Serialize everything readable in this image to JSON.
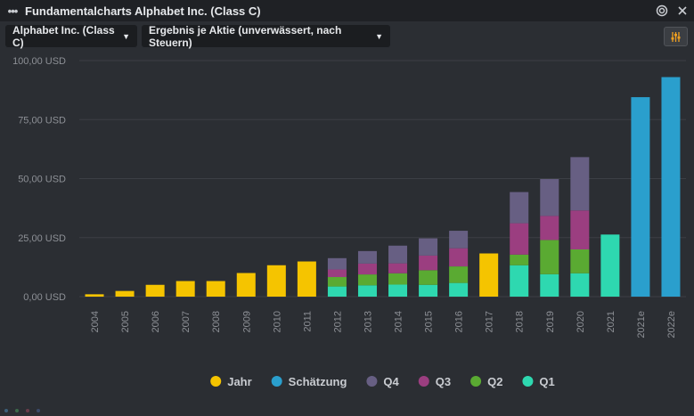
{
  "window": {
    "title": "Fundamentalcharts Alphabet Inc. (Class C)",
    "menu_glyph": "•••"
  },
  "toolbar": {
    "stock_label": "Alphabet Inc. (Class C)",
    "metric_label": "Ergebnis je Aktie (unverwässert, nach Steuern)",
    "dropdown_arrow": "▼"
  },
  "chart_data": {
    "type": "bar",
    "stacked": true,
    "categories": [
      "2004",
      "2005",
      "2006",
      "2007",
      "2008",
      "2009",
      "2010",
      "2011",
      "2012",
      "2013",
      "2014",
      "2015",
      "2016",
      "2017",
      "2018",
      "2019",
      "2020",
      "2021",
      "2021e",
      "2022e"
    ],
    "series": [
      {
        "name": "Jahr",
        "color": "#f5c400",
        "values": [
          1.0,
          2.4,
          5.0,
          6.6,
          6.6,
          10.0,
          13.3,
          14.9,
          null,
          null,
          null,
          null,
          null,
          18.3,
          null,
          null,
          null,
          null,
          null,
          null
        ]
      },
      {
        "name": "Schätzung",
        "color": "#2a9fcd",
        "values": [
          null,
          null,
          null,
          null,
          null,
          null,
          null,
          null,
          null,
          null,
          null,
          null,
          null,
          null,
          null,
          null,
          null,
          null,
          84.5,
          93.0
        ]
      },
      {
        "name": "Q1",
        "color": "#2ed8b0",
        "values": [
          null,
          null,
          null,
          null,
          null,
          null,
          null,
          null,
          4.3,
          4.8,
          5.1,
          5.0,
          5.8,
          null,
          13.3,
          9.5,
          9.9,
          26.3,
          null,
          null
        ]
      },
      {
        "name": "Q2",
        "color": "#5aaa32",
        "values": [
          null,
          null,
          null,
          null,
          null,
          null,
          null,
          null,
          4.0,
          4.6,
          4.8,
          6.2,
          7.0,
          null,
          4.5,
          14.5,
          10.1,
          null,
          null,
          null
        ]
      },
      {
        "name": "Q3",
        "color": "#9b3e80",
        "values": [
          null,
          null,
          null,
          null,
          null,
          null,
          null,
          null,
          3.2,
          4.6,
          4.2,
          6.2,
          7.7,
          null,
          13.3,
          10.2,
          16.5,
          null,
          null,
          null
        ]
      },
      {
        "name": "Q4",
        "color": "#675f83",
        "values": [
          null,
          null,
          null,
          null,
          null,
          null,
          null,
          null,
          4.8,
          5.3,
          7.5,
          7.3,
          7.4,
          null,
          13.2,
          15.6,
          22.6,
          null,
          null,
          null
        ]
      }
    ],
    "ylim": [
      0,
      100
    ],
    "yticks": [
      "0,00 USD",
      "25,00 USD",
      "50,00 USD",
      "75,00 USD",
      "100,00 USD"
    ],
    "ytick_values": [
      0,
      25,
      50,
      75,
      100
    ],
    "grid": true,
    "legend": "bottom-center",
    "legend_items": [
      {
        "label": "Jahr",
        "color": "#f5c400"
      },
      {
        "label": "Schätzung",
        "color": "#2a9fcd"
      },
      {
        "label": "Q4",
        "color": "#675f83"
      },
      {
        "label": "Q3",
        "color": "#9b3e80"
      },
      {
        "label": "Q2",
        "color": "#5aaa32"
      },
      {
        "label": "Q1",
        "color": "#2ed8b0"
      }
    ]
  }
}
